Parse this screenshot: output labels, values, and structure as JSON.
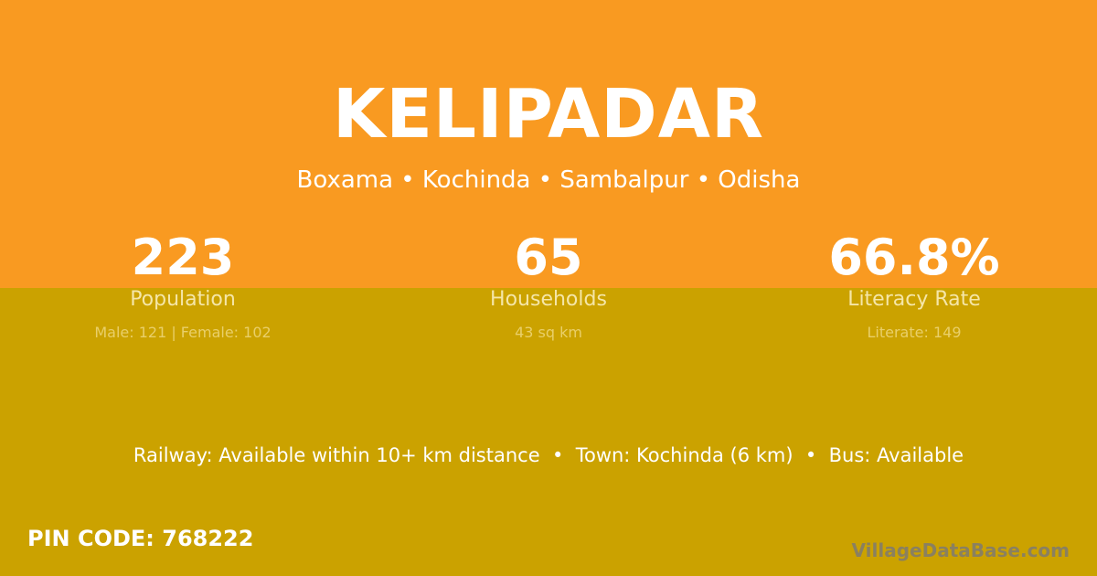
{
  "village": "KELIPADAR",
  "location": "Boxama • Kochinda • Sambalpur • Odisha",
  "stats": [
    {
      "value": "223",
      "label": "Population",
      "detail": "Male: 121 | Female: 102"
    },
    {
      "value": "65",
      "label": "Households",
      "detail": "43 sq km"
    },
    {
      "value": "66.8%",
      "label": "Literacy Rate",
      "detail": "Literate: 149"
    }
  ],
  "connectivity": "Railway: Available within 10+ km distance  •  Town: Kochinda (6 km)  •  Bus: Available",
  "pin_code": "PIN CODE: 768222",
  "brand": "VillageDataBase.com",
  "colors": {
    "top": "#f99a21",
    "bottom": "#cba200"
  }
}
